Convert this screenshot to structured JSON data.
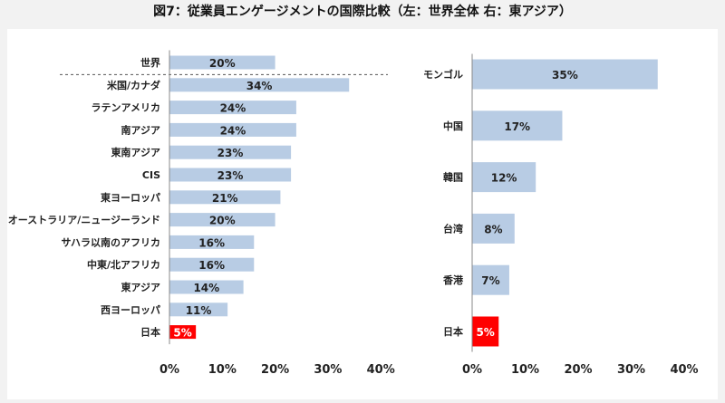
{
  "title": "図7：従業員エンゲージメントの国際比較（左：世界全体 右：東アジア）",
  "colors": {
    "bar": "#b8cce4",
    "highlight": "#ff0000",
    "background": "#f2f2f2",
    "panel": "#ffffff"
  },
  "chart_data": [
    {
      "type": "bar",
      "orientation": "horizontal",
      "categories": [
        "世界",
        "米国/カナダ",
        "ラテンアメリカ",
        "南アジア",
        "東南アジア",
        "CIS",
        "東ヨーロッパ",
        "オーストラリア/ニュージーランド",
        "サハラ以南のアフリカ",
        "中東/北アフリカ",
        "東アジア",
        "西ヨーロッパ",
        "日本"
      ],
      "values": [
        20,
        34,
        24,
        24,
        23,
        23,
        21,
        20,
        16,
        16,
        14,
        11,
        5
      ],
      "value_labels": [
        "20%",
        "34%",
        "24%",
        "24%",
        "23%",
        "23%",
        "21%",
        "20%",
        "16%",
        "16%",
        "14%",
        "11%",
        "5%"
      ],
      "highlight_category": "日本",
      "separator_after": "世界",
      "xlim": [
        0,
        40
      ],
      "xticks": [
        "0%",
        "10%",
        "20%",
        "30%",
        "40%"
      ],
      "grid": false
    },
    {
      "type": "bar",
      "orientation": "horizontal",
      "categories": [
        "モンゴル",
        "中国",
        "韓国",
        "台湾",
        "香港",
        "日本"
      ],
      "values": [
        35,
        17,
        12,
        8,
        7,
        5
      ],
      "value_labels": [
        "35%",
        "17%",
        "12%",
        "8%",
        "7%",
        "5%"
      ],
      "highlight_category": "日本",
      "xlim": [
        0,
        40
      ],
      "xticks": [
        "0%",
        "10%",
        "20%",
        "30%",
        "40%"
      ],
      "grid": false
    }
  ]
}
